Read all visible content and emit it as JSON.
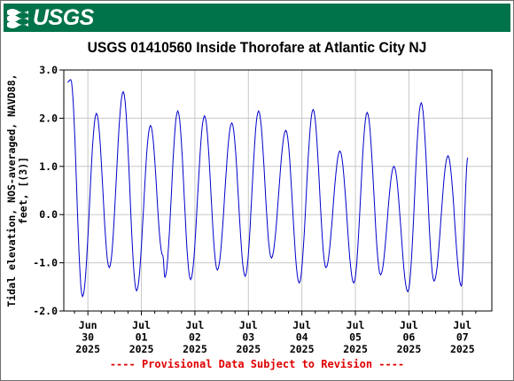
{
  "banner": {
    "logo_text": "USGS",
    "color": "#00734a"
  },
  "chart_data": {
    "type": "line",
    "title": "USGS 01410560 Inside Thorofare at Atlantic City NJ",
    "ylabel": "Tidal elevation, NOS-averaged, NAVD88, feet, [(3)]",
    "xlabel": "",
    "ylim": [
      -2.0,
      3.0
    ],
    "yticks": [
      "3.0",
      "2.0",
      "1.0",
      "0.0",
      "-1.0",
      "-2.0"
    ],
    "xticks": [
      {
        "l1": "Jun",
        "l2": "30",
        "l3": "2025"
      },
      {
        "l1": "Jul",
        "l2": "01",
        "l3": "2025"
      },
      {
        "l1": "Jul",
        "l2": "02",
        "l3": "2025"
      },
      {
        "l1": "Jul",
        "l2": "03",
        "l3": "2025"
      },
      {
        "l1": "Jul",
        "l2": "04",
        "l3": "2025"
      },
      {
        "l1": "Jul",
        "l2": "05",
        "l3": "2025"
      },
      {
        "l1": "Jul",
        "l2": "06",
        "l3": "2025"
      },
      {
        "l1": "Jul",
        "l2": "07",
        "l3": "2025"
      }
    ],
    "grid": true,
    "line_color": "#0000cc",
    "series": [
      {
        "x_unit": "days from Jun 29 2025 00:00",
        "points": [
          [
            0.62,
            2.75
          ],
          [
            0.68,
            2.8
          ],
          [
            0.9,
            -1.7
          ],
          [
            1.16,
            2.1
          ],
          [
            1.4,
            -1.1
          ],
          [
            1.66,
            2.55
          ],
          [
            1.91,
            -1.58
          ],
          [
            2.17,
            1.85
          ],
          [
            2.4,
            -0.85
          ],
          [
            2.44,
            -1.3
          ],
          [
            2.68,
            2.15
          ],
          [
            2.92,
            -1.35
          ],
          [
            3.18,
            2.05
          ],
          [
            3.42,
            -1.15
          ],
          [
            3.69,
            1.9
          ],
          [
            3.94,
            -1.28
          ],
          [
            4.19,
            2.15
          ],
          [
            4.43,
            -0.9
          ],
          [
            4.7,
            1.75
          ],
          [
            4.95,
            -1.42
          ],
          [
            5.21,
            2.18
          ],
          [
            5.45,
            -1.1
          ],
          [
            5.71,
            1.32
          ],
          [
            5.97,
            -1.42
          ],
          [
            6.22,
            2.12
          ],
          [
            6.47,
            -1.25
          ],
          [
            6.72,
            1.0
          ],
          [
            6.98,
            -1.6
          ],
          [
            7.23,
            2.32
          ],
          [
            7.47,
            -1.38
          ],
          [
            7.73,
            1.22
          ],
          [
            7.98,
            -1.48
          ],
          [
            8.1,
            1.18
          ]
        ]
      }
    ]
  },
  "footer": {
    "provisional": "---- Provisional Data Subject to Revision ----"
  }
}
